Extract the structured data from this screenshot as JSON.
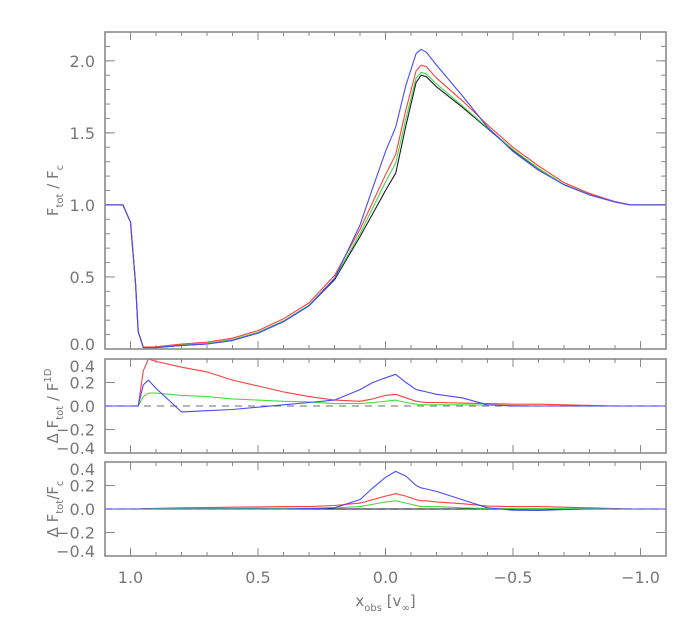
{
  "chart_data": [
    {
      "type": "line",
      "ylabel_parts": [
        {
          "t": "F"
        },
        {
          "t": "tot",
          "sub": true
        },
        {
          "t": " / F"
        },
        {
          "t": "c",
          "sub": true
        }
      ],
      "xlim": [
        1.1,
        -1.1
      ],
      "ylim": [
        0.0,
        2.2
      ],
      "yticks": [
        0.0,
        0.5,
        1.0,
        1.5,
        2.0
      ],
      "ytick_labels": [
        "0.0",
        "0.5",
        "1.0",
        "1.5",
        "2.0"
      ],
      "yminor": 0.1,
      "zero_line": "none",
      "x": [
        1.1,
        1.05,
        1.03,
        1.0,
        0.98,
        0.97,
        0.95,
        0.93,
        0.9,
        0.8,
        0.7,
        0.6,
        0.5,
        0.4,
        0.3,
        0.2,
        0.1,
        0.05,
        0.0,
        -0.04,
        -0.08,
        -0.12,
        -0.14,
        -0.16,
        -0.2,
        -0.3,
        -0.4,
        -0.5,
        -0.6,
        -0.7,
        -0.8,
        -0.9,
        -0.96,
        -1.0,
        -1.1
      ],
      "series": [
        {
          "color": "#1a1a2e",
          "values": [
            1,
            1,
            1,
            0.88,
            0.45,
            0.12,
            0.01,
            0.01,
            0.01,
            0.025,
            0.035,
            0.06,
            0.11,
            0.19,
            0.3,
            0.48,
            0.78,
            0.94,
            1.1,
            1.22,
            1.55,
            1.85,
            1.9,
            1.89,
            1.82,
            1.68,
            1.53,
            1.38,
            1.25,
            1.14,
            1.07,
            1.02,
            1.0,
            1.0,
            1.0
          ]
        },
        {
          "color": "#44dd44",
          "values": [
            1,
            1,
            1,
            0.88,
            0.45,
            0.12,
            0.012,
            0.012,
            0.013,
            0.029,
            0.039,
            0.065,
            0.116,
            0.196,
            0.305,
            0.49,
            0.8,
            0.98,
            1.16,
            1.29,
            1.6,
            1.88,
            1.92,
            1.91,
            1.84,
            1.69,
            1.535,
            1.385,
            1.253,
            1.143,
            1.073,
            1.022,
            1.0,
            1.0,
            1.0
          ]
        },
        {
          "color": "#ff4040",
          "values": [
            1,
            1,
            1,
            0.88,
            0.45,
            0.12,
            0.013,
            0.014,
            0.015,
            0.035,
            0.047,
            0.075,
            0.128,
            0.21,
            0.32,
            0.51,
            0.83,
            1.02,
            1.21,
            1.35,
            1.66,
            1.93,
            1.97,
            1.96,
            1.88,
            1.725,
            1.555,
            1.4,
            1.27,
            1.155,
            1.08,
            1.023,
            1.0,
            1.0,
            1.0
          ]
        },
        {
          "color": "#4a4aff",
          "values": [
            1,
            1,
            1,
            0.88,
            0.45,
            0.12,
            0.01,
            0.01,
            0.01,
            0.025,
            0.035,
            0.06,
            0.11,
            0.19,
            0.3,
            0.49,
            0.86,
            1.12,
            1.37,
            1.54,
            1.83,
            2.05,
            2.08,
            2.06,
            1.97,
            1.76,
            1.54,
            1.37,
            1.24,
            1.14,
            1.07,
            1.02,
            1.0,
            1.0,
            1.0
          ]
        }
      ]
    },
    {
      "type": "line",
      "ylabel_parts": [
        {
          "t": "Δ F"
        },
        {
          "t": "tot",
          "sub": true
        },
        {
          "t": " / F"
        },
        {
          "t": "1D",
          "sup": true,
          "stack": "tot"
        }
      ],
      "xlim": [
        1.1,
        -1.1
      ],
      "ylim": [
        -0.4,
        0.4
      ],
      "yticks": [
        -0.4,
        -0.2,
        0.0,
        0.2,
        0.4
      ],
      "ytick_labels": [
        "−0.4",
        "−0.2",
        "0.0",
        "0.2",
        "0.4"
      ],
      "zero_line": "dashed",
      "x": [
        1.1,
        1.05,
        1.03,
        1.0,
        0.98,
        0.97,
        0.95,
        0.93,
        0.9,
        0.8,
        0.7,
        0.6,
        0.5,
        0.4,
        0.3,
        0.2,
        0.1,
        0.05,
        0.0,
        -0.04,
        -0.08,
        -0.12,
        -0.14,
        -0.16,
        -0.2,
        -0.3,
        -0.4,
        -0.5,
        -0.6,
        -0.7,
        -0.8,
        -0.9,
        -0.96,
        -1.0,
        -1.1
      ],
      "series": [
        {
          "color": "#ff4040",
          "values": [
            0,
            0,
            0,
            0,
            0,
            0,
            0.3,
            0.4,
            0.38,
            0.33,
            0.29,
            0.22,
            0.17,
            0.12,
            0.08,
            0.05,
            0.04,
            0.06,
            0.09,
            0.1,
            0.07,
            0.04,
            0.035,
            0.03,
            0.03,
            0.025,
            0.02,
            0.015,
            0.015,
            0.01,
            0.005,
            0,
            0,
            0,
            0
          ]
        },
        {
          "color": "#44dd44",
          "values": [
            0,
            0,
            0,
            0,
            0,
            0,
            0.08,
            0.11,
            0.11,
            0.09,
            0.08,
            0.06,
            0.05,
            0.04,
            0.035,
            0.02,
            0.02,
            0.03,
            0.04,
            0.05,
            0.03,
            0.015,
            0.01,
            0.01,
            0.01,
            0.01,
            0.008,
            0.005,
            0,
            0,
            0,
            0,
            0,
            0,
            0
          ]
        },
        {
          "color": "#4a4aff",
          "values": [
            0,
            0,
            0,
            0,
            0,
            0,
            0.18,
            0.22,
            0.15,
            -0.05,
            -0.04,
            -0.03,
            -0.01,
            0.01,
            0.03,
            0.05,
            0.14,
            0.2,
            0.24,
            0.27,
            0.2,
            0.14,
            0.13,
            0.12,
            0.1,
            0.07,
            0.01,
            0,
            0,
            0,
            0,
            0,
            0,
            0,
            0
          ]
        }
      ]
    },
    {
      "type": "line",
      "ylabel_parts": [
        {
          "t": "Δ F"
        },
        {
          "t": "tot",
          "sub": true
        },
        {
          "t": "/F"
        },
        {
          "t": "c",
          "sub": true
        }
      ],
      "xlabel_parts": [
        {
          "t": "x"
        },
        {
          "t": "obs",
          "sub": true
        },
        {
          "t": "  [v"
        },
        {
          "t": "∞",
          "sub": true
        },
        {
          "t": "]"
        }
      ],
      "xlim": [
        1.1,
        -1.1
      ],
      "ylim": [
        -0.4,
        0.4
      ],
      "yticks": [
        -0.4,
        -0.2,
        0.0,
        0.2,
        0.4
      ],
      "ytick_labels": [
        "−0.4",
        "−0.2",
        "0.0",
        "0.2",
        "0.4"
      ],
      "xticks": [
        1.0,
        0.5,
        0.0,
        -0.5,
        -1.0
      ],
      "xtick_labels": [
        "1.0",
        "0.5",
        "0.0",
        "−0.5",
        "−1.0"
      ],
      "zero_line": "dashed",
      "x": [
        1.1,
        1.05,
        1.03,
        1.0,
        0.98,
        0.97,
        0.95,
        0.93,
        0.9,
        0.8,
        0.7,
        0.6,
        0.5,
        0.4,
        0.3,
        0.2,
        0.1,
        0.05,
        0.0,
        -0.04,
        -0.08,
        -0.12,
        -0.14,
        -0.16,
        -0.2,
        -0.3,
        -0.4,
        -0.5,
        -0.6,
        -0.7,
        -0.8,
        -0.9,
        -0.96,
        -1.0,
        -1.1
      ],
      "series": [
        {
          "color": "#1a1a2e",
          "values": [
            0,
            0,
            0,
            0,
            0,
            0,
            0,
            0,
            0,
            0,
            0,
            0,
            0,
            0,
            0,
            0,
            0,
            0,
            0,
            0,
            0,
            0,
            0,
            0,
            0,
            0,
            0,
            0,
            0,
            0,
            0,
            0,
            0,
            0,
            0
          ]
        },
        {
          "color": "#ff4040",
          "values": [
            0,
            0,
            0,
            0,
            0,
            0,
            0.003,
            0.004,
            0.005,
            0.01,
            0.012,
            0.015,
            0.018,
            0.02,
            0.02,
            0.03,
            0.05,
            0.08,
            0.11,
            0.13,
            0.11,
            0.08,
            0.07,
            0.07,
            0.06,
            0.045,
            0.025,
            0.02,
            0.02,
            0.015,
            0.01,
            0.003,
            0,
            0,
            0
          ]
        },
        {
          "color": "#44dd44",
          "values": [
            0,
            0,
            0,
            0,
            0,
            0,
            0.002,
            0.002,
            0.003,
            0.004,
            0.004,
            0.005,
            0.006,
            0.006,
            0.005,
            0.01,
            0.02,
            0.04,
            0.06,
            0.07,
            0.05,
            0.03,
            0.02,
            0.02,
            0.02,
            0.01,
            0.005,
            0.005,
            0.003,
            0.003,
            0.003,
            0.002,
            0,
            0,
            0
          ]
        },
        {
          "color": "#4a4aff",
          "values": [
            0,
            0,
            0,
            0,
            0,
            0,
            0,
            0,
            0,
            0,
            0,
            0,
            0,
            0,
            0.003,
            0.01,
            0.08,
            0.18,
            0.27,
            0.32,
            0.28,
            0.2,
            0.18,
            0.17,
            0.15,
            0.08,
            0.01,
            -0.01,
            -0.012,
            -0.005,
            0,
            0,
            0,
            0,
            0
          ]
        }
      ]
    }
  ],
  "colors": {
    "frame": "#8a8a8a",
    "zero_dash": "#8a8a8a",
    "text": "#777777"
  }
}
